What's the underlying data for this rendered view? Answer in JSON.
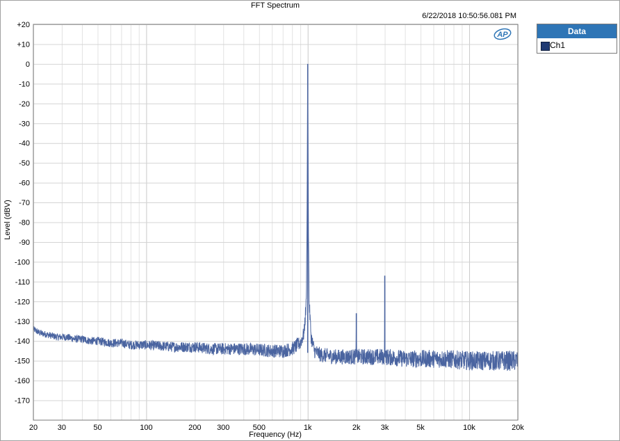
{
  "chart_data": {
    "type": "line",
    "title": "FFT Spectrum",
    "timestamp": "6/22/2018 10:50:56.081 PM",
    "xlabel": "Frequency (Hz)",
    "ylabel": "Level (dBV)",
    "x_scale": "log",
    "xlim": [
      20,
      20000
    ],
    "ylim": [
      -180,
      20
    ],
    "grid": true,
    "x_ticks": [
      {
        "value": 20,
        "label": "20"
      },
      {
        "value": 30,
        "label": "30"
      },
      {
        "value": 50,
        "label": "50"
      },
      {
        "value": 100,
        "label": "100"
      },
      {
        "value": 200,
        "label": "200"
      },
      {
        "value": 300,
        "label": "300"
      },
      {
        "value": 500,
        "label": "500"
      },
      {
        "value": 1000,
        "label": "1k"
      },
      {
        "value": 2000,
        "label": "2k"
      },
      {
        "value": 3000,
        "label": "3k"
      },
      {
        "value": 5000,
        "label": "5k"
      },
      {
        "value": 10000,
        "label": "10k"
      },
      {
        "value": 20000,
        "label": "20k"
      }
    ],
    "y_ticks": [
      {
        "value": 20,
        "label": "+20"
      },
      {
        "value": 10,
        "label": "+10"
      },
      {
        "value": 0,
        "label": "0"
      },
      {
        "value": -10,
        "label": "-10"
      },
      {
        "value": -20,
        "label": "-20"
      },
      {
        "value": -30,
        "label": "-30"
      },
      {
        "value": -40,
        "label": "-40"
      },
      {
        "value": -50,
        "label": "-50"
      },
      {
        "value": -60,
        "label": "-60"
      },
      {
        "value": -70,
        "label": "-70"
      },
      {
        "value": -80,
        "label": "-80"
      },
      {
        "value": -90,
        "label": "-90"
      },
      {
        "value": -100,
        "label": "-100"
      },
      {
        "value": -110,
        "label": "-110"
      },
      {
        "value": -120,
        "label": "-120"
      },
      {
        "value": -130,
        "label": "-130"
      },
      {
        "value": -140,
        "label": "-140"
      },
      {
        "value": -150,
        "label": "-150"
      },
      {
        "value": -160,
        "label": "-160"
      },
      {
        "value": -170,
        "label": "-170"
      }
    ],
    "legend": {
      "title": "Data",
      "placement": "right",
      "entries": [
        {
          "name": "Ch1",
          "color": "#1f3a73"
        }
      ]
    },
    "series": [
      {
        "name": "Ch1",
        "color": "#4a64a0",
        "points": [
          [
            20,
            -134
          ],
          [
            22,
            -136
          ],
          [
            25,
            -137
          ],
          [
            28,
            -138
          ],
          [
            32,
            -138
          ],
          [
            36,
            -139
          ],
          [
            40,
            -139
          ],
          [
            45,
            -140
          ],
          [
            50,
            -140
          ],
          [
            60,
            -141
          ],
          [
            70,
            -141
          ],
          [
            80,
            -142
          ],
          [
            100,
            -142
          ],
          [
            120,
            -142.5
          ],
          [
            150,
            -143
          ],
          [
            200,
            -143
          ],
          [
            250,
            -144
          ],
          [
            300,
            -144
          ],
          [
            400,
            -144
          ],
          [
            500,
            -144.5
          ],
          [
            600,
            -145
          ],
          [
            700,
            -145
          ],
          [
            800,
            -144
          ],
          [
            900,
            -141
          ],
          [
            950,
            -136
          ],
          [
            980,
            -120
          ],
          [
            990,
            -80
          ],
          [
            1000,
            0
          ],
          [
            1010,
            -80
          ],
          [
            1020,
            -120
          ],
          [
            1050,
            -138
          ],
          [
            1100,
            -145
          ],
          [
            1200,
            -147
          ],
          [
            1500,
            -148
          ],
          [
            1900,
            -148
          ],
          [
            1990,
            -148
          ],
          [
            2000,
            -126
          ],
          [
            2010,
            -148
          ],
          [
            2500,
            -148
          ],
          [
            2990,
            -148
          ],
          [
            3000,
            -107
          ],
          [
            3010,
            -148
          ],
          [
            3500,
            -148.5
          ],
          [
            4000,
            -149
          ],
          [
            5000,
            -149
          ],
          [
            7000,
            -149
          ],
          [
            10000,
            -150
          ],
          [
            15000,
            -150
          ],
          [
            20000,
            -150
          ]
        ],
        "noise_spread_db": 4
      }
    ],
    "peaks": [
      {
        "x": 1000,
        "y": 0
      },
      {
        "x": 2000,
        "y": -126
      },
      {
        "x": 3000,
        "y": -107
      }
    ]
  },
  "logo": {
    "text": "AP",
    "color": "#2e75b6"
  }
}
